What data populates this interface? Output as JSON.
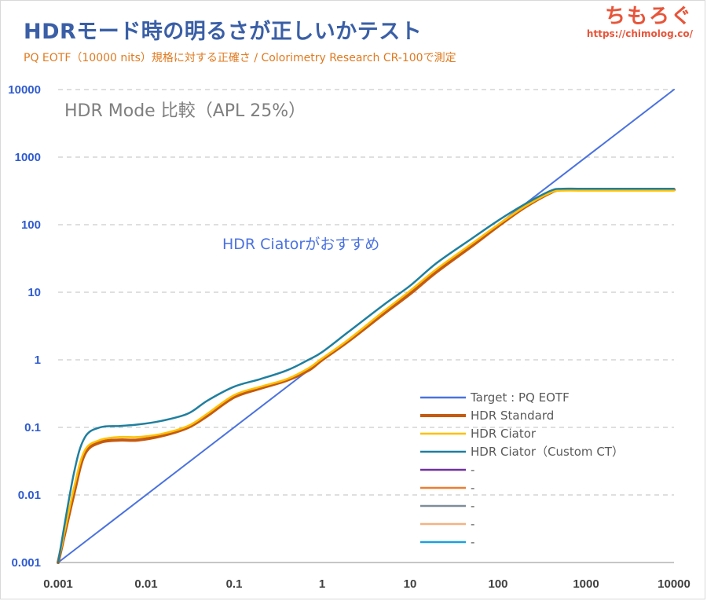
{
  "header": {
    "title": "HDRモード時の明るさが正しいかテスト",
    "subtitle": "PQ EOTF（10000 nits）規格に対する正確さ / Colorimetry Research CR-100で測定"
  },
  "brand": {
    "name": "ちもろぐ",
    "url": "https://chimolog.co/"
  },
  "chart_data": {
    "type": "line",
    "title": "HDR Mode 比較（APL 25%）",
    "annotation": "HDR Ciatorがおすすめ",
    "x_scale": "log",
    "y_scale": "log",
    "xlim": [
      0.001,
      10000
    ],
    "ylim": [
      0.001,
      10000
    ],
    "x_ticks": [
      "0.001",
      "0.01",
      "0.1",
      "1",
      "10",
      "100",
      "1000",
      "10000"
    ],
    "y_ticks": [
      "0.001",
      "0.01",
      "0.1",
      "1",
      "10",
      "100",
      "1000",
      "10000"
    ],
    "grid": "horizontal dashed",
    "legend_position": "bottom-right",
    "series": [
      {
        "name": "Target : PQ EOTF",
        "color": "#4a72e0",
        "points": [
          [
            0.001,
            0.001
          ],
          [
            10000,
            10000
          ]
        ]
      },
      {
        "name": "HDR Standard",
        "color": "#c55a11",
        "points": [
          [
            0.001,
            0.001
          ],
          [
            0.0015,
            0.01
          ],
          [
            0.002,
            0.04
          ],
          [
            0.003,
            0.06
          ],
          [
            0.005,
            0.065
          ],
          [
            0.008,
            0.065
          ],
          [
            0.015,
            0.075
          ],
          [
            0.03,
            0.1
          ],
          [
            0.05,
            0.15
          ],
          [
            0.1,
            0.28
          ],
          [
            0.2,
            0.38
          ],
          [
            0.4,
            0.5
          ],
          [
            0.7,
            0.7
          ],
          [
            1,
            1
          ],
          [
            2,
            1.9
          ],
          [
            5,
            4.8
          ],
          [
            10,
            9.5
          ],
          [
            20,
            20
          ],
          [
            50,
            48
          ],
          [
            100,
            95
          ],
          [
            200,
            180
          ],
          [
            400,
            300
          ],
          [
            550,
            330
          ],
          [
            1000,
            330
          ],
          [
            10000,
            330
          ]
        ]
      },
      {
        "name": "HDR Ciator",
        "color": "#ffc000",
        "points": [
          [
            0.001,
            0.001
          ],
          [
            0.0015,
            0.012
          ],
          [
            0.002,
            0.045
          ],
          [
            0.003,
            0.065
          ],
          [
            0.005,
            0.072
          ],
          [
            0.008,
            0.072
          ],
          [
            0.015,
            0.08
          ],
          [
            0.03,
            0.105
          ],
          [
            0.05,
            0.16
          ],
          [
            0.1,
            0.3
          ],
          [
            0.2,
            0.4
          ],
          [
            0.4,
            0.52
          ],
          [
            0.7,
            0.75
          ],
          [
            1,
            1.05
          ],
          [
            2,
            2
          ],
          [
            5,
            5.2
          ],
          [
            10,
            10.5
          ],
          [
            20,
            22
          ],
          [
            50,
            52
          ],
          [
            100,
            100
          ],
          [
            200,
            185
          ],
          [
            400,
            300
          ],
          [
            550,
            320
          ],
          [
            1000,
            320
          ],
          [
            10000,
            320
          ]
        ]
      },
      {
        "name": "HDR Ciator（Custom CT）",
        "color": "#1f7f9f",
        "points": [
          [
            0.001,
            0.001
          ],
          [
            0.0015,
            0.02
          ],
          [
            0.002,
            0.07
          ],
          [
            0.003,
            0.1
          ],
          [
            0.005,
            0.105
          ],
          [
            0.008,
            0.11
          ],
          [
            0.015,
            0.125
          ],
          [
            0.03,
            0.16
          ],
          [
            0.05,
            0.25
          ],
          [
            0.1,
            0.4
          ],
          [
            0.2,
            0.52
          ],
          [
            0.4,
            0.7
          ],
          [
            0.7,
            1.0
          ],
          [
            1,
            1.3
          ],
          [
            2,
            2.6
          ],
          [
            5,
            6.5
          ],
          [
            10,
            12.5
          ],
          [
            20,
            27
          ],
          [
            50,
            62
          ],
          [
            100,
            115
          ],
          [
            200,
            200
          ],
          [
            400,
            320
          ],
          [
            550,
            340
          ],
          [
            1000,
            340
          ],
          [
            10000,
            340
          ]
        ]
      },
      {
        "name": "-",
        "color": "#7030a0",
        "points": []
      },
      {
        "name": "-",
        "color": "#ed7d31",
        "points": []
      },
      {
        "name": "-",
        "color": "#7f8c99",
        "points": []
      },
      {
        "name": "-",
        "color": "#f4b183",
        "points": []
      },
      {
        "name": "-",
        "color": "#1e9fe0",
        "points": []
      }
    ]
  }
}
